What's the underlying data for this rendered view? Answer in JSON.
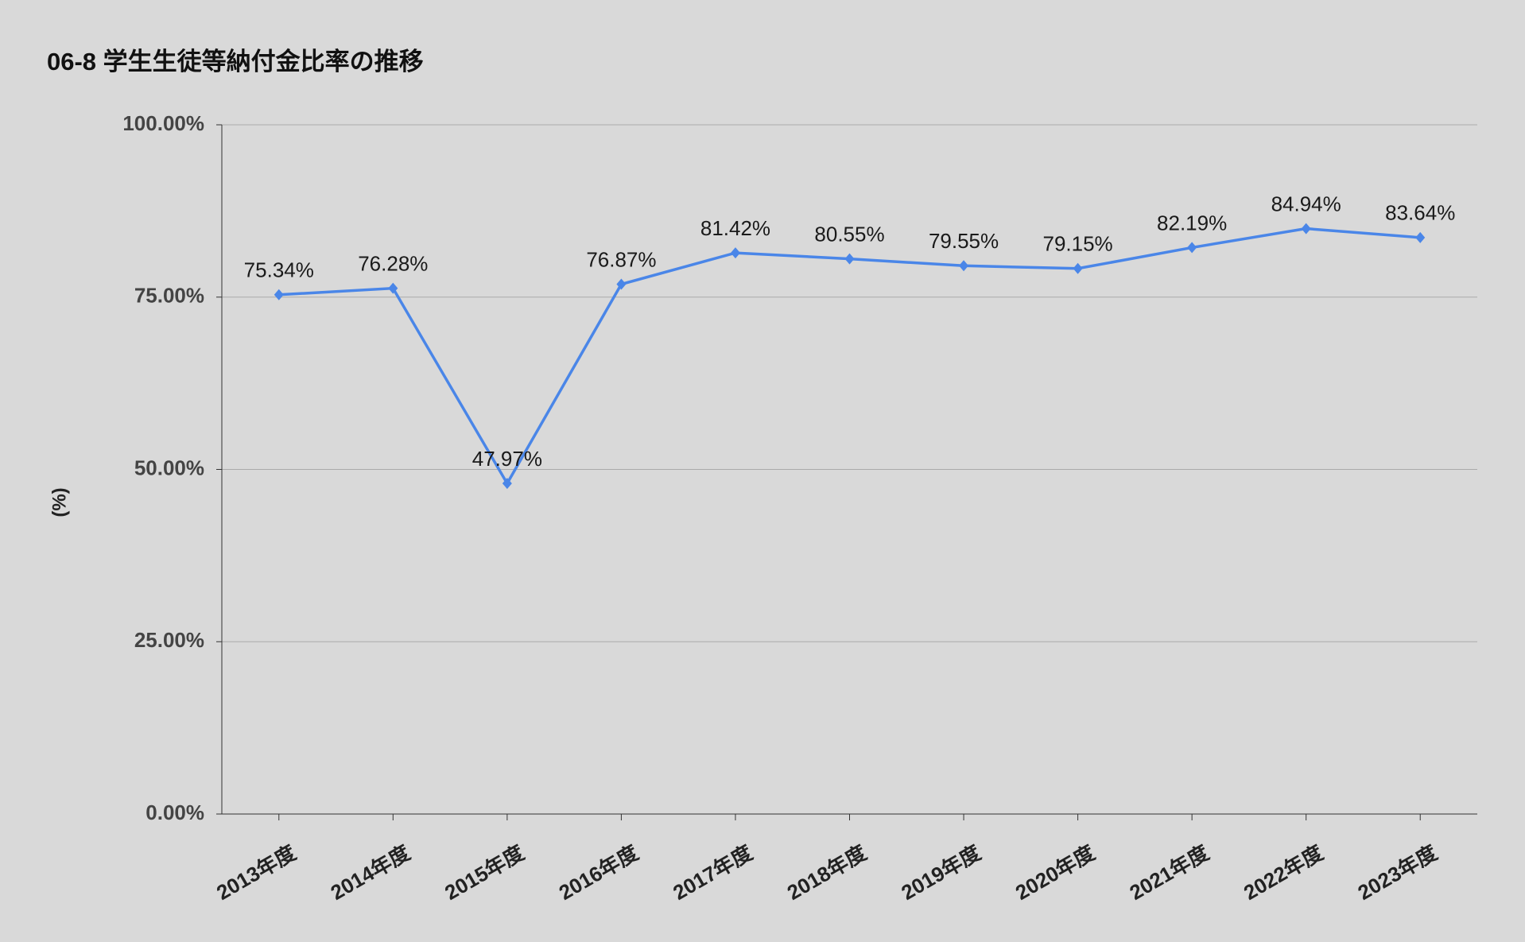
{
  "chart_data": {
    "type": "line",
    "title": "06-8 学生生徒等納付金比率の推移",
    "y_label": "(%)",
    "categories": [
      "2013年度",
      "2014年度",
      "2015年度",
      "2016年度",
      "2017年度",
      "2018年度",
      "2019年度",
      "2020年度",
      "2021年度",
      "2022年度",
      "2023年度"
    ],
    "series": [
      {
        "name": "学生生徒等納付金比率",
        "color": "#4a86e8",
        "values": [
          75.34,
          76.28,
          47.97,
          76.87,
          81.42,
          80.55,
          79.55,
          79.15,
          82.19,
          84.94,
          83.64
        ],
        "value_labels": [
          "75.34%",
          "76.28%",
          "47.97%",
          "76.87%",
          "81.42%",
          "80.55%",
          "79.55%",
          "79.15%",
          "82.19%",
          "84.94%",
          "83.64%"
        ]
      }
    ],
    "ylim": [
      0,
      100
    ],
    "yticks": [
      {
        "value": 0,
        "label": "0.00%"
      },
      {
        "value": 25,
        "label": "25.00%"
      },
      {
        "value": 50,
        "label": "50.00%"
      },
      {
        "value": 75,
        "label": "75.00%"
      },
      {
        "value": 100,
        "label": "100.00%"
      }
    ],
    "grid": true
  }
}
